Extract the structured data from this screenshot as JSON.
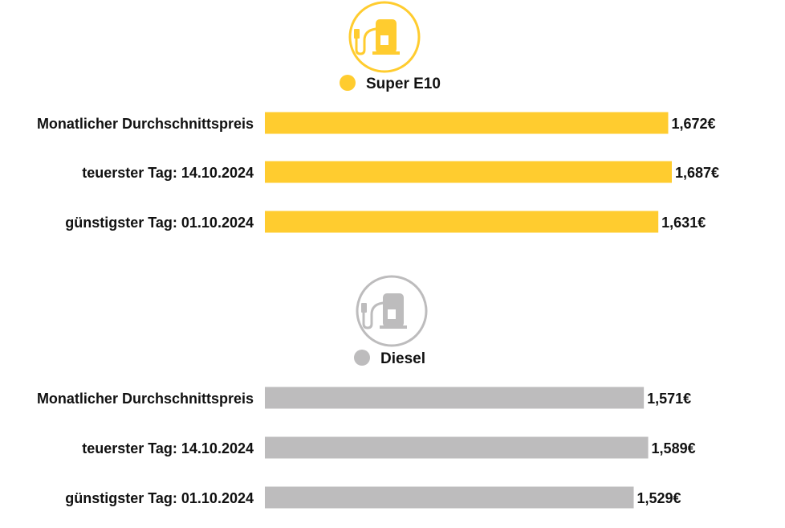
{
  "chart_data": [
    {
      "type": "bar",
      "orientation": "horizontal",
      "legend": "Super E10",
      "icon": "fuel-pump-icon",
      "color": "#FFCC2F",
      "categories": [
        "Monatlicher Durchschnittspreis",
        "teuerster Tag: 14.10.2024",
        "günstigster Tag: 01.10.2024"
      ],
      "values": [
        1.672,
        1.687,
        1.631
      ],
      "value_labels": [
        "1,672€",
        "1,687€",
        "1,631€"
      ]
    },
    {
      "type": "bar",
      "orientation": "horizontal",
      "legend": "Diesel",
      "icon": "fuel-pump-icon",
      "color": "#BDBCBD",
      "categories": [
        "Monatlicher Durchschnittspreis",
        "teuerster Tag: 14.10.2024",
        "günstigster Tag: 01.10.2024"
      ],
      "values": [
        1.571,
        1.589,
        1.529
      ],
      "value_labels": [
        "1,571€",
        "1,589€",
        "1,529€"
      ]
    }
  ]
}
